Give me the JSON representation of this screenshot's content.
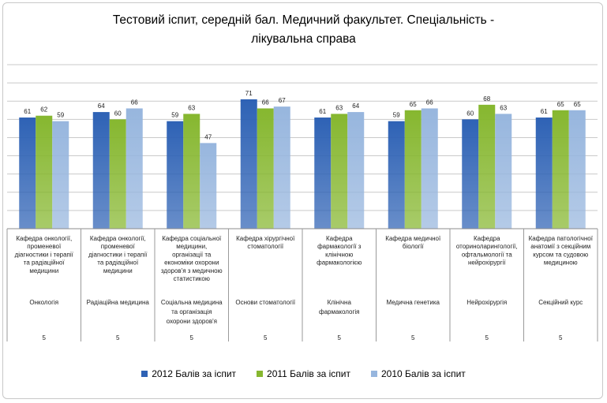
{
  "chart_data": {
    "type": "bar",
    "title": "Тестовий іспит, середній бал. Медичний факультет. Спеціальність - лікувальна справа",
    "title_lines": [
      "Тестовий іспит, середній бал. Медичний факультет. Спеціальність -",
      "лікувальна справа"
    ],
    "ylim": [
      0,
      90
    ],
    "grid": true,
    "legend_position": "bottom",
    "series": [
      {
        "name": "2012 Балів за іспит",
        "color": "#2e62b5",
        "values": [
          61,
          64,
          59,
          71,
          61,
          59,
          60,
          61
        ]
      },
      {
        "name": "2011 Балів за іспит",
        "color": "#86b72f",
        "values": [
          62,
          60,
          63,
          66,
          63,
          65,
          68,
          65
        ]
      },
      {
        "name": "2010 Балів за іспит",
        "color": "#97b6de",
        "values": [
          59,
          66,
          47,
          67,
          64,
          66,
          63,
          65
        ]
      }
    ],
    "categories": [
      {
        "department": [
          "Кафедра онкології,",
          "променевої",
          "діагностики і терапії",
          "та радіаційної",
          "медицини"
        ],
        "subject": [
          "Онкологія"
        ],
        "count": "5"
      },
      {
        "department": [
          "Кафедра онкології,",
          "променевої",
          "діагностики і терапії",
          "та радіаційної",
          "медицини"
        ],
        "subject": [
          "Радіаційна медицина"
        ],
        "count": "5"
      },
      {
        "department": [
          "Кафедра соціальної",
          "медицини,",
          "організації та",
          "економіки охорони",
          "здоров'я з медичною",
          "статистикою"
        ],
        "subject": [
          "Соціальна медицина",
          "та організація",
          "охорони здоров'я"
        ],
        "count": "5"
      },
      {
        "department": [
          "Кафедра хірургічної",
          "стоматології"
        ],
        "subject": [
          "Основи стоматології"
        ],
        "count": "5"
      },
      {
        "department": [
          "Кафедра",
          "фармакології з",
          "клінічною",
          "фармакологією"
        ],
        "subject": [
          "Клінічна",
          "фармакологія"
        ],
        "count": "5"
      },
      {
        "department": [
          "Кафедра медичної",
          "біології"
        ],
        "subject": [
          "Медична генетика"
        ],
        "count": "5"
      },
      {
        "department": [
          "Кафедра",
          "оториноларингології,",
          "офтальмології та",
          "нейрохірургії"
        ],
        "subject": [
          "Нейрохірургія"
        ],
        "count": "5"
      },
      {
        "department": [
          "Кафедра патологічної",
          "анатомії з секційним",
          "курсом та судовою",
          "медициною"
        ],
        "subject": [
          "Секційний курс"
        ],
        "count": "5"
      }
    ]
  }
}
